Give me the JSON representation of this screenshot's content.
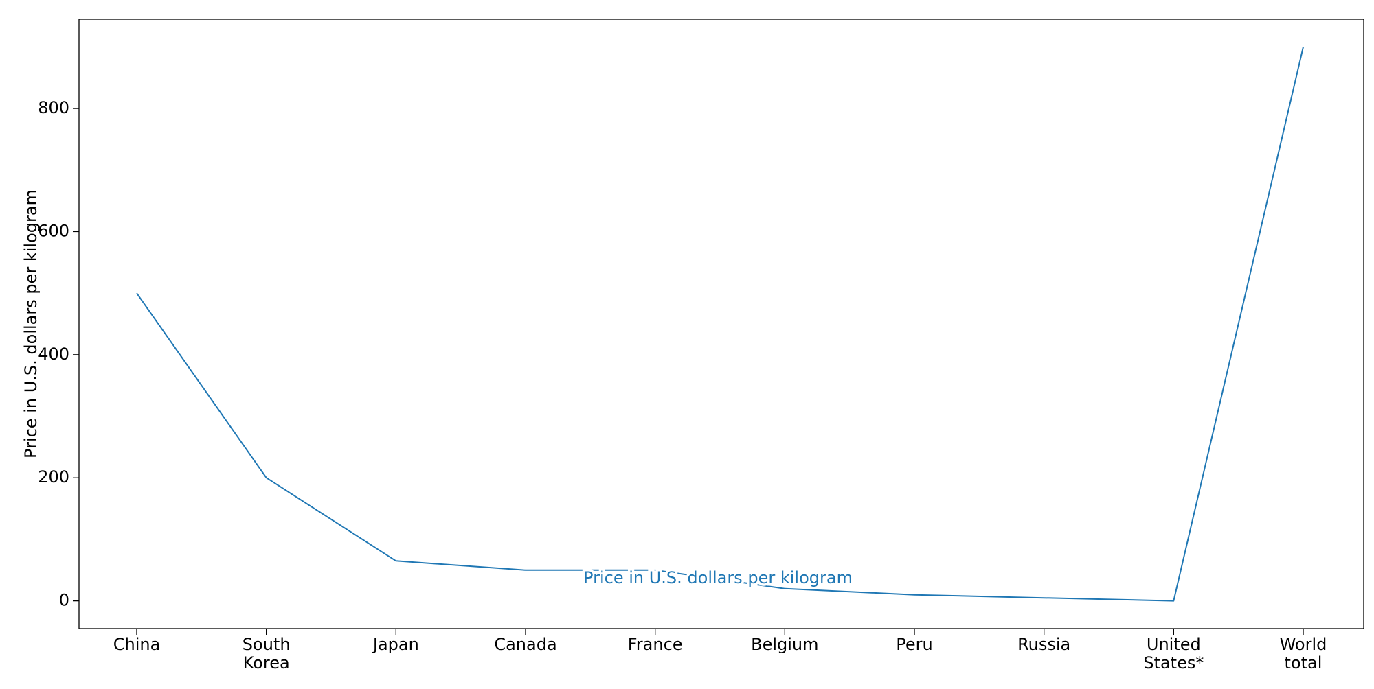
{
  "chart_data": {
    "type": "line",
    "categories": [
      "China",
      "South Korea",
      "Japan",
      "Canada",
      "France",
      "Belgium",
      "Peru",
      "Russia",
      "United States*",
      "World total"
    ],
    "category_lines": [
      [
        "China"
      ],
      [
        "South",
        "Korea"
      ],
      [
        "Japan"
      ],
      [
        "Canada"
      ],
      [
        "France"
      ],
      [
        "Belgium"
      ],
      [
        "Peru"
      ],
      [
        "Russia"
      ],
      [
        "United",
        "States*"
      ],
      [
        "World",
        "total"
      ]
    ],
    "series": [
      {
        "name": "Price in U.S. dollars per kilogram",
        "values": [
          500,
          200,
          65,
          50,
          50,
          20,
          10,
          5,
          0,
          900
        ],
        "color": "#1f77b4"
      }
    ],
    "title": "",
    "xlabel": "",
    "ylabel": "Price in U.S. dollars per kilogram",
    "ylim": [
      -45,
      945
    ],
    "yticks": [
      0,
      200,
      400,
      600,
      800
    ],
    "grid": false,
    "legend": "none",
    "inline_label_color": "#1f77b4"
  }
}
